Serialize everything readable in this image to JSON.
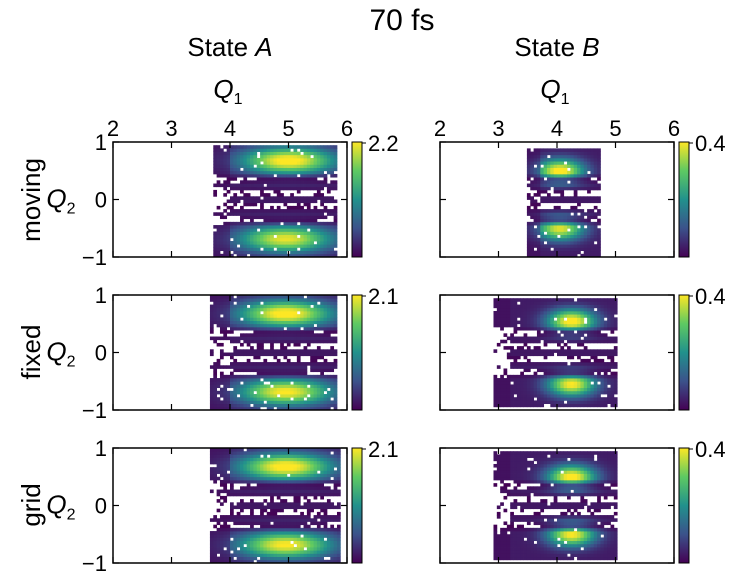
{
  "figure": {
    "title": "70 fs",
    "columns": [
      {
        "label_prefix": "State ",
        "label_italic": "A"
      },
      {
        "label_prefix": "State ",
        "label_italic": "B"
      }
    ],
    "rows": [
      "moving",
      "fixed",
      "grid"
    ],
    "x_axis_label": "Q",
    "x_axis_subscript": "1",
    "y_axis_label": "Q",
    "y_axis_subscript": "2"
  },
  "chart_data": [
    {
      "type": "heatmap",
      "state": "A",
      "method": "moving",
      "colormap": "viridis",
      "xlim": [
        2,
        6
      ],
      "ylim": [
        -1,
        1
      ],
      "xticks": [
        "2",
        "3",
        "4",
        "5",
        "6"
      ],
      "yticks": [
        "1",
        "0",
        "−1"
      ],
      "colorbar_max": "2.2",
      "colorbar_range": [
        0,
        2.2
      ],
      "blobs": [
        {
          "x": 5.0,
          "y": 0.68,
          "value": 2.2
        },
        {
          "x": 4.95,
          "y": -0.68,
          "value": 2.0
        }
      ],
      "support": {
        "xmin": 3.7,
        "xmax": 5.8,
        "ymin": -1.0,
        "ymax": 0.95
      }
    },
    {
      "type": "heatmap",
      "state": "B",
      "method": "moving",
      "colormap": "viridis",
      "xlim": [
        2,
        6
      ],
      "ylim": [
        -1,
        1
      ],
      "xticks": [
        "2",
        "3",
        "4",
        "5",
        "6"
      ],
      "yticks": [],
      "colorbar_max": "0.4",
      "colorbar_range": [
        0,
        0.4
      ],
      "blobs": [
        {
          "x": 4.05,
          "y": 0.5,
          "value": 0.4
        },
        {
          "x": 4.05,
          "y": -0.5,
          "value": 0.36
        }
      ],
      "support": {
        "xmin": 3.5,
        "xmax": 4.75,
        "ymin": -1.0,
        "ymax": 0.9
      }
    },
    {
      "type": "heatmap",
      "state": "A",
      "method": "fixed",
      "colormap": "viridis",
      "xlim": [
        2,
        6
      ],
      "ylim": [
        -1,
        1
      ],
      "xticks": [],
      "yticks": [
        "1",
        "0",
        "−1"
      ],
      "colorbar_max": "2.1",
      "colorbar_range": [
        0,
        2.1
      ],
      "blobs": [
        {
          "x": 4.95,
          "y": 0.68,
          "value": 2.1
        },
        {
          "x": 4.95,
          "y": -0.68,
          "value": 2.0
        }
      ],
      "support": {
        "xmin": 3.65,
        "xmax": 5.85,
        "ymin": -0.98,
        "ymax": 0.98
      }
    },
    {
      "type": "heatmap",
      "state": "B",
      "method": "fixed",
      "colormap": "viridis",
      "xlim": [
        2,
        6
      ],
      "ylim": [
        -1,
        1
      ],
      "xticks": [],
      "yticks": [],
      "colorbar_max": "0.4",
      "colorbar_range": [
        0,
        0.4
      ],
      "blobs": [
        {
          "x": 4.25,
          "y": 0.55,
          "value": 0.4
        },
        {
          "x": 4.25,
          "y": -0.55,
          "value": 0.38
        }
      ],
      "support": {
        "xmin": 2.9,
        "xmax": 5.0,
        "ymin": -0.95,
        "ymax": 0.95
      }
    },
    {
      "type": "heatmap",
      "state": "A",
      "method": "grid",
      "colormap": "viridis",
      "xlim": [
        2,
        6
      ],
      "ylim": [
        -1,
        1
      ],
      "xticks": [],
      "yticks": [
        "1",
        "0",
        "−1"
      ],
      "colorbar_max": "2.1",
      "colorbar_range": [
        0,
        2.1
      ],
      "blobs": [
        {
          "x": 4.95,
          "y": 0.68,
          "value": 2.1
        },
        {
          "x": 4.95,
          "y": -0.68,
          "value": 2.0
        }
      ],
      "support": {
        "xmin": 3.65,
        "xmax": 5.9,
        "ymin": -1.0,
        "ymax": 1.0
      }
    },
    {
      "type": "heatmap",
      "state": "B",
      "method": "grid",
      "colormap": "viridis",
      "xlim": [
        2,
        6
      ],
      "ylim": [
        -1,
        1
      ],
      "xticks": [],
      "yticks": [],
      "colorbar_max": "0.4",
      "colorbar_range": [
        0,
        0.4
      ],
      "blobs": [
        {
          "x": 4.25,
          "y": 0.5,
          "value": 0.4
        },
        {
          "x": 4.25,
          "y": -0.5,
          "value": 0.38
        }
      ],
      "support": {
        "xmin": 2.9,
        "xmax": 5.05,
        "ymin": -0.95,
        "ymax": 0.95
      }
    }
  ]
}
